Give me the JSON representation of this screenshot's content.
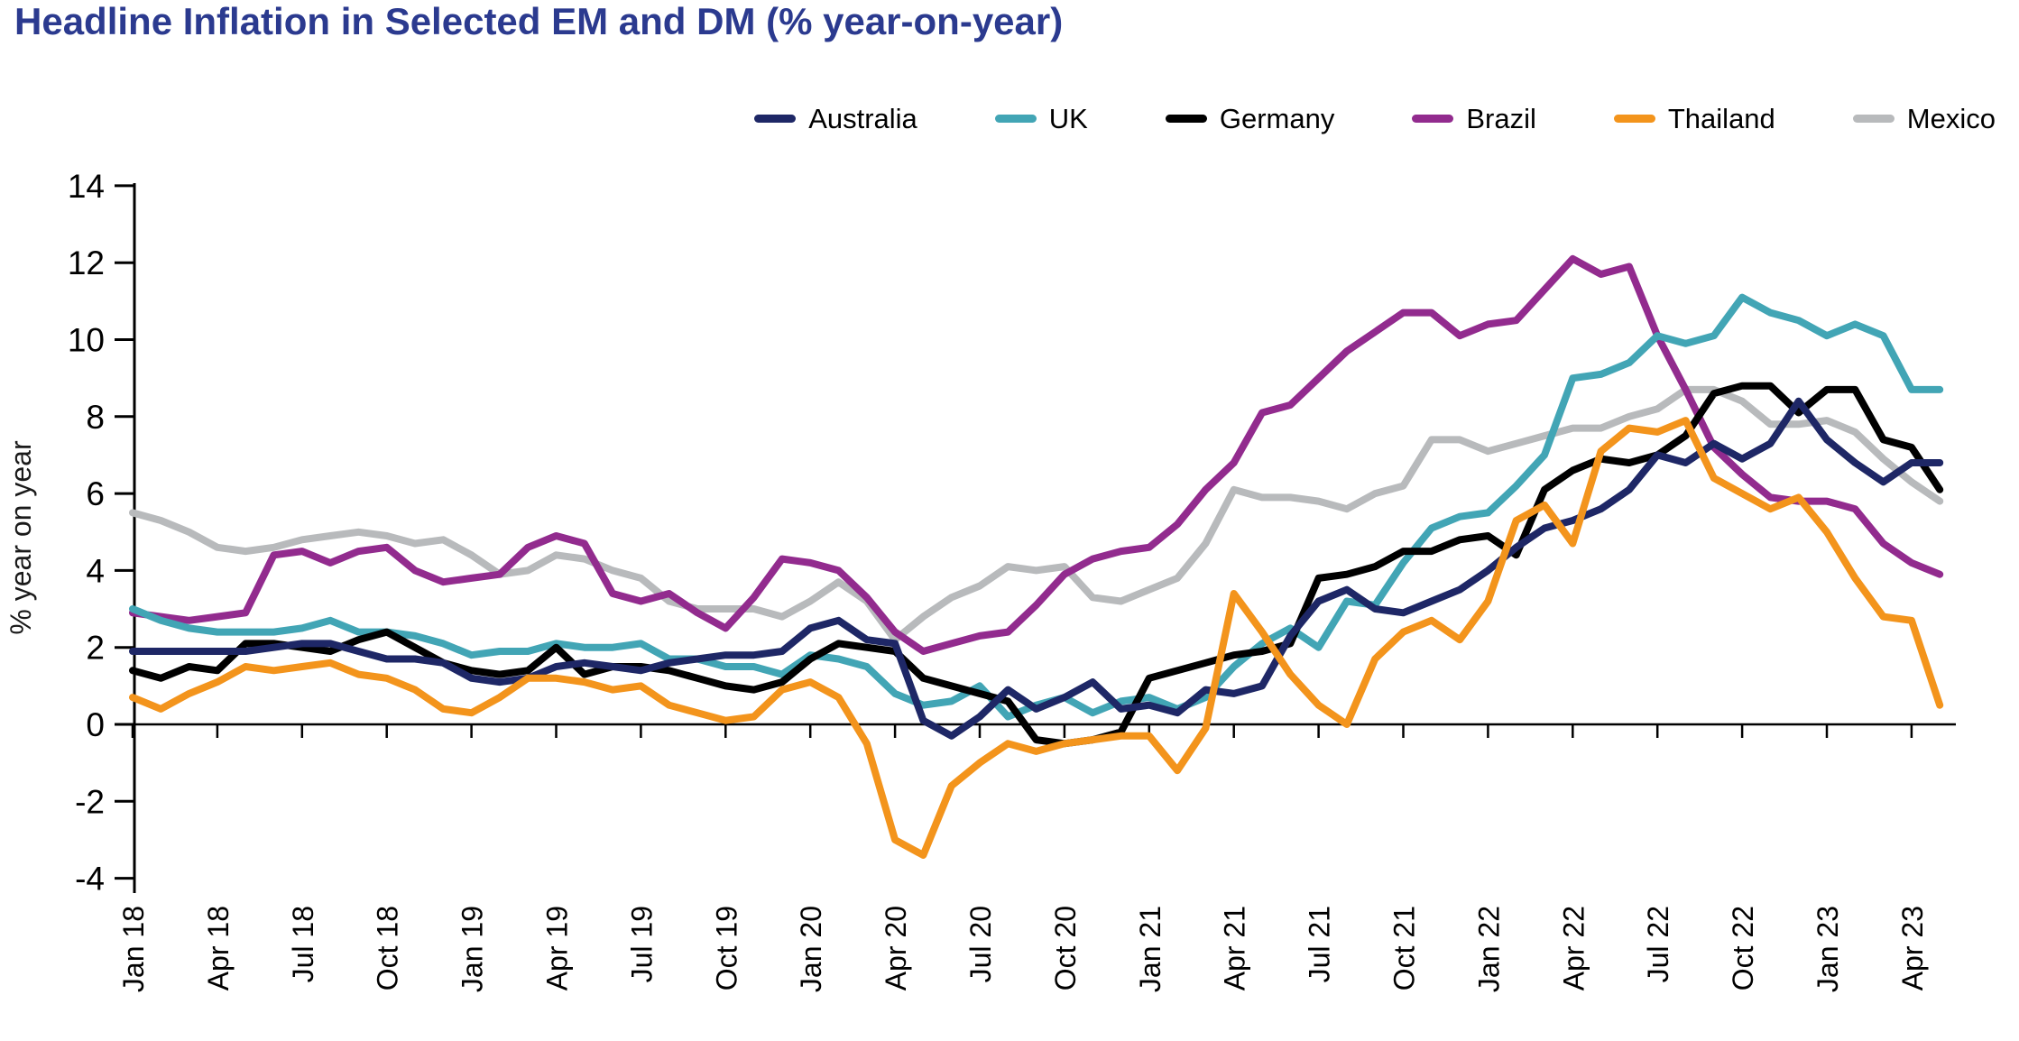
{
  "chart_data": {
    "type": "line",
    "title": "Headline Inflation in Selected EM and DM (% year-on-year)",
    "title_color": "#2b3a8f",
    "ylabel": "% year on year",
    "x_start": "Jan 2018",
    "x_end": "May 2023",
    "x_frequency": "monthly",
    "x_tick_labels": [
      "Jan 18",
      "Apr 18",
      "Jul 18",
      "Oct 18",
      "Jan 19",
      "Apr 19",
      "Jul 19",
      "Oct 19",
      "Jan 20",
      "Apr 20",
      "Jul 20",
      "Oct 20",
      "Jan 21",
      "Apr 21",
      "Jul 21",
      "Oct 21",
      "Jan 22",
      "Apr 22",
      "Jul 22",
      "Oct 22",
      "Jan 23",
      "Apr 23"
    ],
    "x_tick_every_months": 3,
    "y_ticks": [
      -4,
      -2,
      0,
      2,
      4,
      6,
      8,
      10,
      12,
      14
    ],
    "ylim": [
      -4.6,
      14
    ],
    "grid": false,
    "legend_position": "top-right",
    "series": [
      {
        "name": "Australia",
        "color": "#1e2766",
        "values": [
          1.9,
          1.9,
          1.9,
          1.9,
          1.9,
          2.0,
          2.1,
          2.1,
          1.9,
          1.7,
          1.7,
          1.6,
          1.2,
          1.1,
          1.2,
          1.5,
          1.6,
          1.5,
          1.4,
          1.6,
          1.7,
          1.8,
          1.8,
          1.9,
          2.5,
          2.7,
          2.2,
          2.1,
          0.1,
          -0.3,
          0.2,
          0.9,
          0.4,
          0.7,
          1.1,
          0.4,
          0.5,
          0.3,
          0.9,
          0.8,
          1.0,
          2.3,
          3.2,
          3.5,
          3.0,
          2.9,
          3.2,
          3.5,
          4.0,
          4.6,
          5.1,
          5.3,
          5.6,
          6.1,
          7.0,
          6.8,
          7.3,
          6.9,
          7.3,
          8.4,
          7.4,
          6.8,
          6.3,
          6.8,
          6.8
        ]
      },
      {
        "name": "UK",
        "color": "#42a5b5",
        "values": [
          3.0,
          2.7,
          2.5,
          2.4,
          2.4,
          2.4,
          2.5,
          2.7,
          2.4,
          2.4,
          2.3,
          2.1,
          1.8,
          1.9,
          1.9,
          2.1,
          2.0,
          2.0,
          2.1,
          1.7,
          1.7,
          1.5,
          1.5,
          1.3,
          1.8,
          1.7,
          1.5,
          0.8,
          0.5,
          0.6,
          1.0,
          0.2,
          0.5,
          0.7,
          0.3,
          0.6,
          0.7,
          0.4,
          0.7,
          1.5,
          2.1,
          2.5,
          2.0,
          3.2,
          3.1,
          4.2,
          5.1,
          5.4,
          5.5,
          6.2,
          7.0,
          9.0,
          9.1,
          9.4,
          10.1,
          9.9,
          10.1,
          11.1,
          10.7,
          10.5,
          10.1,
          10.4,
          10.1,
          8.7,
          8.7
        ]
      },
      {
        "name": "Germany",
        "color": "#000000",
        "values": [
          1.4,
          1.2,
          1.5,
          1.4,
          2.1,
          2.1,
          2.0,
          1.9,
          2.2,
          2.4,
          2.0,
          1.6,
          1.4,
          1.3,
          1.4,
          2.0,
          1.3,
          1.5,
          1.5,
          1.4,
          1.2,
          1.0,
          0.9,
          1.1,
          1.7,
          2.1,
          2.0,
          1.9,
          1.2,
          1.0,
          0.8,
          0.6,
          -0.4,
          -0.5,
          -0.4,
          -0.2,
          1.2,
          1.4,
          1.6,
          1.8,
          1.9,
          2.1,
          3.8,
          3.9,
          4.1,
          4.5,
          4.5,
          4.8,
          4.9,
          4.4,
          6.1,
          6.6,
          6.9,
          6.8,
          7.0,
          7.5,
          8.6,
          8.8,
          8.8,
          8.1,
          8.7,
          8.7,
          7.4,
          7.2,
          6.1
        ]
      },
      {
        "name": "Brazil",
        "color": "#922b8e",
        "values": [
          2.9,
          2.8,
          2.7,
          2.8,
          2.9,
          4.4,
          4.5,
          4.2,
          4.5,
          4.6,
          4.0,
          3.7,
          3.8,
          3.9,
          4.6,
          4.9,
          4.7,
          3.4,
          3.2,
          3.4,
          2.9,
          2.5,
          3.3,
          4.3,
          4.2,
          4.0,
          3.3,
          2.4,
          1.9,
          2.1,
          2.3,
          2.4,
          3.1,
          3.9,
          4.3,
          4.5,
          4.6,
          5.2,
          6.1,
          6.8,
          8.1,
          8.3,
          9.0,
          9.7,
          10.2,
          10.7,
          10.7,
          10.1,
          10.4,
          10.5,
          11.3,
          12.1,
          11.7,
          11.9,
          10.1,
          8.7,
          7.2,
          6.5,
          5.9,
          5.8,
          5.8,
          5.6,
          4.7,
          4.2,
          3.9
        ]
      },
      {
        "name": "Thailand",
        "color": "#f3941c",
        "values": [
          0.7,
          0.4,
          0.8,
          1.1,
          1.5,
          1.4,
          1.5,
          1.6,
          1.3,
          1.2,
          0.9,
          0.4,
          0.3,
          0.7,
          1.2,
          1.2,
          1.1,
          0.9,
          1.0,
          0.5,
          0.3,
          0.1,
          0.2,
          0.9,
          1.1,
          0.7,
          -0.5,
          -3.0,
          -3.4,
          -1.6,
          -1.0,
          -0.5,
          -0.7,
          -0.5,
          -0.4,
          -0.3,
          -0.3,
          -1.2,
          -0.1,
          3.4,
          2.4,
          1.3,
          0.5,
          0.0,
          1.7,
          2.4,
          2.7,
          2.2,
          3.2,
          5.3,
          5.7,
          4.7,
          7.1,
          7.7,
          7.6,
          7.9,
          6.4,
          6.0,
          5.6,
          5.9,
          5.0,
          3.8,
          2.8,
          2.7,
          0.5
        ]
      },
      {
        "name": "Mexico",
        "color": "#b8babc",
        "values": [
          5.5,
          5.3,
          5.0,
          4.6,
          4.5,
          4.6,
          4.8,
          4.9,
          5.0,
          4.9,
          4.7,
          4.8,
          4.4,
          3.9,
          4.0,
          4.4,
          4.3,
          4.0,
          3.8,
          3.2,
          3.0,
          3.0,
          3.0,
          2.8,
          3.2,
          3.7,
          3.2,
          2.2,
          2.8,
          3.3,
          3.6,
          4.1,
          4.0,
          4.1,
          3.3,
          3.2,
          3.5,
          3.8,
          4.7,
          6.1,
          5.9,
          5.9,
          5.8,
          5.6,
          6.0,
          6.2,
          7.4,
          7.4,
          7.1,
          7.3,
          7.5,
          7.7,
          7.7,
          8.0,
          8.2,
          8.7,
          8.7,
          8.4,
          7.8,
          7.8,
          7.9,
          7.6,
          6.9,
          6.3,
          5.8
        ]
      }
    ]
  }
}
